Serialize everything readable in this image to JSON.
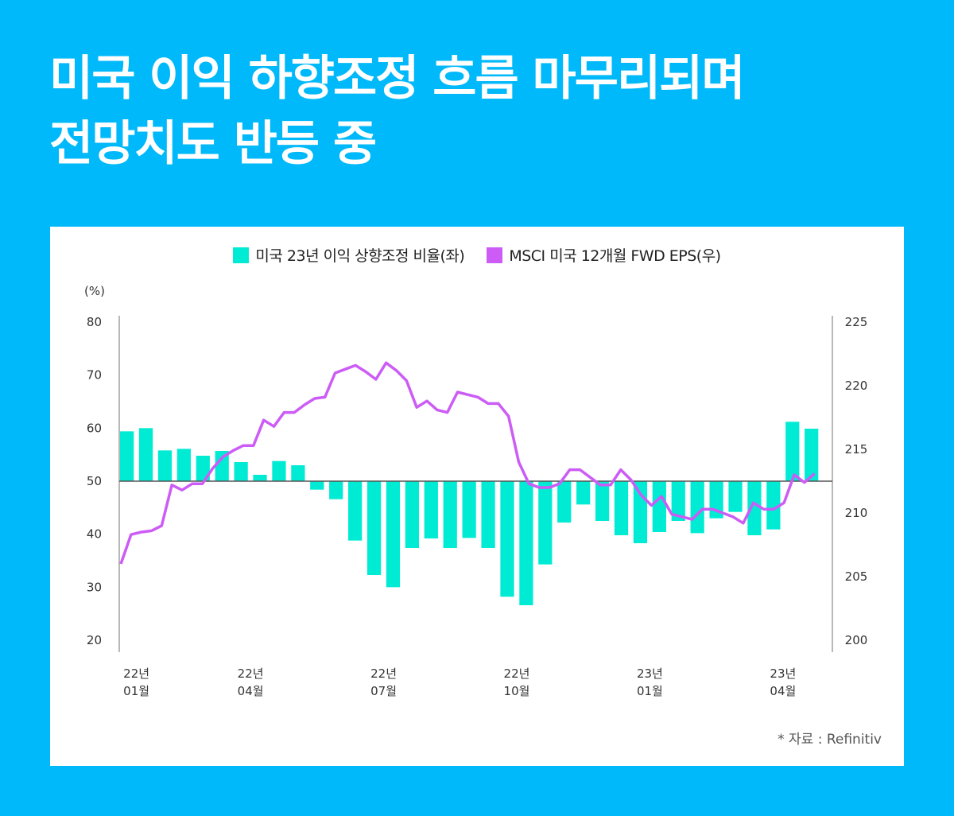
{
  "title": {
    "line1": "미국 이익 하향조정 흐름 마무리되며",
    "line2": "전망치도 반등 중"
  },
  "colors": {
    "background": "#00B9FA",
    "bar": "#00EBD4",
    "line": "#CC5CF5",
    "axis": "#888888",
    "baseline": "#555555"
  },
  "source": "* 자료 : Refinitiv",
  "chart_data": {
    "type": "bar+line",
    "legend_position": "top-center",
    "grid": false,
    "left_axis": {
      "unit_label": "(%)",
      "ylim": [
        20,
        80
      ],
      "ticks": [
        80,
        70,
        60,
        50,
        40,
        30,
        20
      ],
      "baseline": 50
    },
    "right_axis": {
      "ylim": [
        200,
        225
      ],
      "ticks": [
        225,
        220,
        215,
        210,
        205,
        200
      ]
    },
    "x_tick_labels": [
      {
        "year": "22년",
        "month": "01월",
        "index": 0
      },
      {
        "year": "22년",
        "month": "04월",
        "index": 6
      },
      {
        "year": "22년",
        "month": "07월",
        "index": 13
      },
      {
        "year": "22년",
        "month": "10월",
        "index": 20
      },
      {
        "year": "23년",
        "month": "01월",
        "index": 27
      },
      {
        "year": "23년",
        "month": "04월",
        "index": 34
      }
    ],
    "series": [
      {
        "name": "미국 23년 이익 상향조정 비율(좌)",
        "type": "bar",
        "axis": "left",
        "values": [
          59.4,
          60.0,
          55.8,
          56.1,
          54.8,
          55.7,
          53.6,
          51.2,
          53.8,
          53.0,
          48.4,
          46.6,
          38.8,
          32.3,
          30.0,
          37.4,
          39.2,
          37.4,
          39.3,
          37.4,
          28.2,
          26.6,
          34.3,
          42.2,
          45.6,
          42.5,
          39.8,
          38.3,
          40.4,
          42.5,
          40.2,
          43.0,
          44.2,
          39.8,
          40.9,
          61.2,
          59.9
        ]
      },
      {
        "name": "MSCI 미국 12개월 FWD EPS(우)",
        "type": "line",
        "axis": "right",
        "values": [
          206.0,
          208.3,
          208.5,
          208.6,
          209.0,
          212.2,
          211.8,
          212.3,
          212.3,
          213.5,
          214.4,
          214.9,
          215.3,
          215.3,
          217.3,
          216.8,
          217.9,
          217.9,
          218.5,
          219.0,
          219.1,
          221.0,
          221.3,
          221.6,
          221.1,
          220.5,
          221.8,
          221.2,
          220.4,
          218.3,
          218.8,
          218.1,
          217.9,
          219.5,
          219.3,
          219.1,
          218.6,
          218.6,
          217.6,
          214.0,
          212.3,
          212.0,
          212.0,
          212.3,
          213.4,
          213.4,
          212.8,
          212.2,
          212.2,
          213.4,
          212.6,
          211.4,
          210.6,
          211.3,
          209.9,
          209.7,
          209.5,
          210.3,
          210.3,
          210.0,
          209.7,
          209.2,
          210.8,
          210.3,
          210.3,
          210.8,
          213.0,
          212.4,
          213.1
        ]
      }
    ]
  }
}
